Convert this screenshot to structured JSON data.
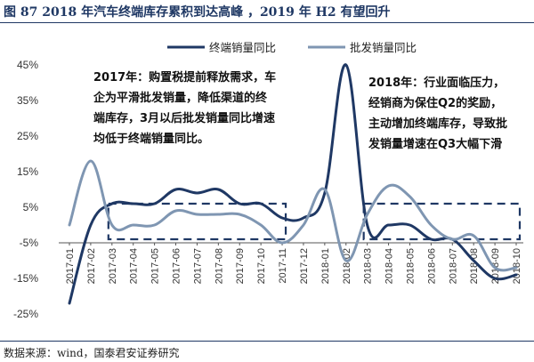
{
  "header": {
    "title": "图 87   2018 年汽车终端库存累积到达高峰 ，2019 年 H2 有望回升"
  },
  "footer": {
    "source": "数据来源：wind，国泰君安证券研究"
  },
  "colors": {
    "retail": "#1f3864",
    "wholesale": "#7f96b2",
    "dashed_box": "#1f3864",
    "axis": "#333333"
  },
  "chart_data": {
    "type": "line",
    "x": [
      "2017-01",
      "2017-02",
      "2017-03",
      "2017-04",
      "2017-05",
      "2017-06",
      "2017-07",
      "2017-08",
      "2017-09",
      "2017-10",
      "2017-11",
      "2017-12",
      "2018-01",
      "2018-02",
      "2018-03",
      "2018-04",
      "2018-05",
      "2018-06",
      "2018-07",
      "2018-08",
      "2018-09",
      "2018-10"
    ],
    "series": [
      {
        "name": "终端销量同比",
        "values": [
          -22,
          0,
          6,
          6,
          6,
          10,
          9,
          10,
          6,
          6,
          2,
          2,
          9,
          45,
          0,
          0,
          0,
          -4,
          -4,
          -10,
          -15,
          -14
        ]
      },
      {
        "name": "批发销量同比",
        "values": [
          0,
          18,
          0,
          0,
          0,
          4,
          3,
          3,
          3,
          0,
          -5,
          0,
          10,
          -10,
          3,
          11,
          8,
          0,
          -4,
          -3,
          -12,
          -12
        ]
      }
    ],
    "yticks": [
      "45%",
      "35%",
      "25%",
      "15%",
      "5%",
      "-5%",
      "-15%",
      "-25%"
    ],
    "ylim": [
      -25,
      45
    ],
    "legend": "top-center",
    "annotations": [
      {
        "lines": [
          "2017年：购置税提前释放需求，车",
          "企为平滑批发销量，降低渠道的终",
          "端库存，3月以后批发销量同比增速",
          "均低于终端销量同比。"
        ]
      },
      {
        "lines": [
          "2018年：行业面临压力，",
          "经销商为保住Q2的奖励，",
          "主动增加终端库存，导致批",
          "发销量增速在Q3大幅下滑"
        ]
      }
    ]
  }
}
